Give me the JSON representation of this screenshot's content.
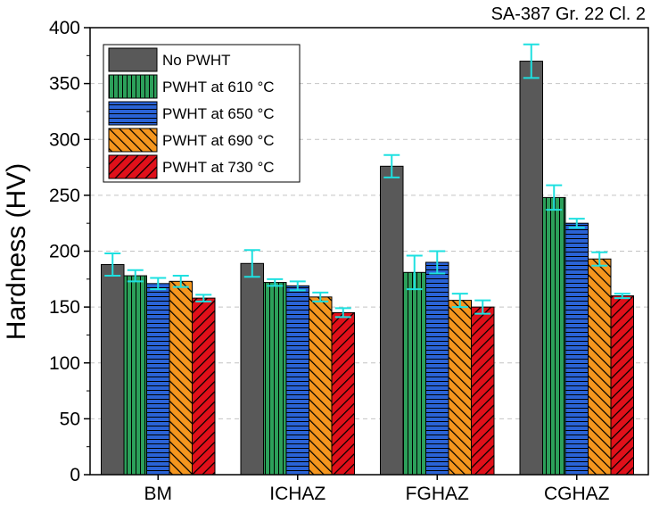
{
  "chart_data": {
    "type": "bar",
    "title": "SA-387 Gr. 22 Cl. 2",
    "xlabel": "",
    "ylabel": "Hardness (HV)",
    "ylim": [
      0,
      400
    ],
    "yticks": [
      0,
      50,
      100,
      150,
      200,
      250,
      300,
      350,
      400
    ],
    "grid": "horizontal dashed",
    "legend_position": "top-left",
    "categories": [
      "BM",
      "ICHAZ",
      "FGHAZ",
      "CGHAZ"
    ],
    "series": [
      {
        "name": "No PWHT",
        "color": "#595959",
        "pattern": "solid",
        "values": [
          188,
          189,
          276,
          370
        ],
        "errors": [
          10,
          12,
          10,
          15
        ]
      },
      {
        "name": "PWHT at 610 °C",
        "color": "#2ca05a",
        "pattern": "vertical-lines",
        "values": [
          178,
          172,
          181,
          248
        ],
        "errors": [
          5,
          3,
          15,
          11
        ]
      },
      {
        "name": "PWHT at 650 °C",
        "color": "#2a63d6",
        "pattern": "horizontal-lines",
        "values": [
          171,
          169,
          190,
          225
        ],
        "errors": [
          5,
          4,
          10,
          4
        ]
      },
      {
        "name": "PWHT at 690 °C",
        "color": "#f5961e",
        "pattern": "back-diagonal",
        "values": [
          173,
          159,
          156,
          193
        ],
        "errors": [
          5,
          4,
          6,
          6
        ]
      },
      {
        "name": "PWHT at 730 °C",
        "color": "#e0101a",
        "pattern": "forward-diagonal",
        "values": [
          158,
          145,
          150,
          160
        ],
        "errors": [
          3,
          4,
          6,
          2
        ]
      }
    ],
    "error_bar_color": "#1ee0e0"
  }
}
